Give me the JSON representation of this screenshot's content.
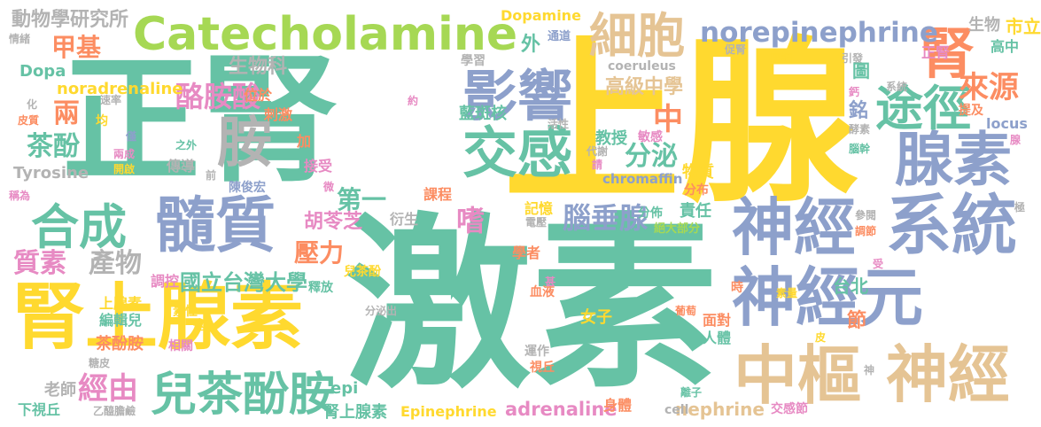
{
  "palette": {
    "teal": "#66c2a5",
    "yellow": "#ffd92f",
    "periwinkle": "#8da0cb",
    "tan": "#e5c494",
    "orange": "#fc8d62",
    "green": "#a6d854",
    "pink": "#e78ac3",
    "grey": "#b3b3b3"
  },
  "words": [
    {
      "id": "w1",
      "text": "激素",
      "color": "teal"
    },
    {
      "id": "w2",
      "text": "上腺",
      "color": "yellow"
    },
    {
      "id": "w3",
      "text": "正腎",
      "color": "teal"
    },
    {
      "id": "w4",
      "text": "腎上腺素",
      "color": "yellow"
    },
    {
      "id": "w5",
      "text": "Catecholamine",
      "color": "green"
    },
    {
      "id": "w6",
      "text": "髓質",
      "color": "periwinkle"
    },
    {
      "id": "w7",
      "text": "系統",
      "color": "periwinkle"
    },
    {
      "id": "w8",
      "text": "神經元",
      "color": "periwinkle"
    },
    {
      "id": "w9",
      "text": "神經",
      "color": "tan"
    },
    {
      "id": "w10",
      "text": "中樞",
      "color": "tan"
    },
    {
      "id": "w11",
      "text": "神經",
      "color": "periwinkle"
    },
    {
      "id": "w12",
      "text": "合成",
      "color": "teal"
    },
    {
      "id": "w13",
      "text": "兒茶酚胺",
      "color": "teal"
    },
    {
      "id": "w14",
      "text": "腺素",
      "color": "periwinkle"
    },
    {
      "id": "w15",
      "text": "細胞",
      "color": "tan"
    },
    {
      "id": "w16",
      "text": "影響",
      "color": "periwinkle"
    },
    {
      "id": "w17",
      "text": "交感",
      "color": "teal"
    },
    {
      "id": "w18",
      "text": "途徑",
      "color": "teal"
    },
    {
      "id": "w19",
      "text": "腎",
      "color": "orange"
    },
    {
      "id": "w20",
      "text": "norepinephrine",
      "color": "periwinkle"
    },
    {
      "id": "w21",
      "text": "胺",
      "color": "grey"
    },
    {
      "id": "w22",
      "text": "甲基",
      "color": "orange"
    },
    {
      "id": "w23",
      "text": "動物學研究所",
      "color": "grey"
    },
    {
      "id": "w24",
      "text": "Dopamine",
      "color": "yellow"
    },
    {
      "id": "w25",
      "text": "生物",
      "color": "grey"
    },
    {
      "id": "w26",
      "text": "來源",
      "color": "orange"
    },
    {
      "id": "w27",
      "text": "酪胺酸",
      "color": "pink"
    },
    {
      "id": "w28",
      "text": "高級中學",
      "color": "tan"
    },
    {
      "id": "w29",
      "text": "中",
      "color": "orange"
    },
    {
      "id": "w30",
      "text": "分泌",
      "color": "teal"
    },
    {
      "id": "w31",
      "text": "腦垂腺",
      "color": "periwinkle"
    },
    {
      "id": "w32",
      "text": "質素",
      "color": "pink"
    },
    {
      "id": "w33",
      "text": "產物",
      "color": "grey"
    },
    {
      "id": "w34",
      "text": "國立台灣大學",
      "color": "teal"
    },
    {
      "id": "w35",
      "text": "茶酚",
      "color": "teal"
    },
    {
      "id": "w36",
      "text": "兩",
      "color": "orange"
    },
    {
      "id": "w37",
      "text": "經由",
      "color": "pink"
    },
    {
      "id": "w38",
      "text": "壓力",
      "color": "orange"
    },
    {
      "id": "w39",
      "text": "第一",
      "color": "teal"
    },
    {
      "id": "w40",
      "text": "嗜",
      "color": "pink"
    },
    {
      "id": "w41",
      "text": "noradrenaline",
      "color": "yellow"
    },
    {
      "id": "w42",
      "text": "Dopa",
      "color": "teal"
    },
    {
      "id": "w43",
      "text": "生物科",
      "color": "grey"
    },
    {
      "id": "w44",
      "text": "Tyrosine",
      "color": "grey"
    },
    {
      "id": "w45",
      "text": "胡苓芝",
      "color": "pink"
    },
    {
      "id": "w46",
      "text": "Epinephrine",
      "color": "yellow"
    },
    {
      "id": "w47",
      "text": "adrenaline",
      "color": "pink"
    },
    {
      "id": "w48",
      "text": "nephrine",
      "color": "tan"
    },
    {
      "id": "w49",
      "text": "coeruleus",
      "color": "grey"
    },
    {
      "id": "w50",
      "text": "chromaffin",
      "color": "periwinkle"
    },
    {
      "id": "w51",
      "text": "locus",
      "color": "periwinkle"
    },
    {
      "id": "w52",
      "text": "epi",
      "color": "teal"
    },
    {
      "id": "w53",
      "text": "cell",
      "color": "grey"
    },
    {
      "id": "w54",
      "text": "台北",
      "color": "teal"
    },
    {
      "id": "w55",
      "text": "市立",
      "color": "yellow"
    },
    {
      "id": "w56",
      "text": "高中",
      "color": "teal"
    },
    {
      "id": "w57",
      "text": "正腎",
      "color": "pink"
    },
    {
      "id": "w58",
      "text": "腎上腺素",
      "color": "teal"
    },
    {
      "id": "w59",
      "text": "下視丘",
      "color": "teal"
    },
    {
      "id": "w60",
      "text": "老師",
      "color": "grey"
    },
    {
      "id": "w61",
      "text": "茶酚胺",
      "color": "orange"
    },
    {
      "id": "w62",
      "text": "上腺素",
      "color": "yellow"
    },
    {
      "id": "w63",
      "text": "編輯兒",
      "color": "teal"
    },
    {
      "id": "w64",
      "text": "調控",
      "color": "pink"
    },
    {
      "id": "w65",
      "text": "藍斑核",
      "color": "teal"
    },
    {
      "id": "w66",
      "text": "教授",
      "color": "teal"
    },
    {
      "id": "w67",
      "text": "敏感",
      "color": "pink"
    },
    {
      "id": "w68",
      "text": "課程",
      "color": "orange"
    },
    {
      "id": "w69",
      "text": "記憶",
      "color": "yellow"
    },
    {
      "id": "w70",
      "text": "衍生",
      "color": "grey"
    },
    {
      "id": "w71",
      "text": "分佈",
      "color": "teal"
    },
    {
      "id": "w72",
      "text": "責任",
      "color": "teal"
    },
    {
      "id": "w73",
      "text": "絕大部分",
      "color": "green"
    },
    {
      "id": "w74",
      "text": "物質",
      "color": "yellow"
    },
    {
      "id": "w75",
      "text": "分布",
      "color": "orange"
    },
    {
      "id": "w76",
      "text": "學者",
      "color": "orange"
    },
    {
      "id": "w77",
      "text": "女子",
      "color": "yellow"
    },
    {
      "id": "w78",
      "text": "節",
      "color": "orange"
    },
    {
      "id": "w79",
      "text": "面對",
      "color": "orange"
    },
    {
      "id": "w80",
      "text": "人體",
      "color": "teal"
    },
    {
      "id": "w81",
      "text": "身體",
      "color": "orange"
    },
    {
      "id": "w82",
      "text": "交感節",
      "color": "pink"
    },
    {
      "id": "w83",
      "text": "運作",
      "color": "grey"
    },
    {
      "id": "w84",
      "text": "視丘",
      "color": "orange"
    },
    {
      "id": "w85",
      "text": "血液",
      "color": "orange"
    },
    {
      "id": "w86",
      "text": "陳俊宏",
      "color": "periwinkle"
    },
    {
      "id": "w87",
      "text": "傳導",
      "color": "grey"
    },
    {
      "id": "w88",
      "text": "接受",
      "color": "pink"
    },
    {
      "id": "w89",
      "text": "刺激",
      "color": "orange"
    },
    {
      "id": "w90",
      "text": "位於",
      "color": "orange"
    },
    {
      "id": "w91",
      "text": "學習",
      "color": "grey"
    },
    {
      "id": "w92",
      "text": "通道",
      "color": "periwinkle"
    },
    {
      "id": "w93",
      "text": "閱讀",
      "color": "yellow"
    },
    {
      "id": "w94",
      "text": "促腎",
      "color": "grey"
    },
    {
      "id": "w95",
      "text": "引發",
      "color": "grey"
    },
    {
      "id": "w96",
      "text": "系統",
      "color": "grey"
    },
    {
      "id": "w97",
      "text": "提及",
      "color": "orange"
    },
    {
      "id": "w98",
      "text": "酵素",
      "color": "grey"
    },
    {
      "id": "w99",
      "text": "腦幹",
      "color": "teal"
    },
    {
      "id": "w100",
      "text": "參閱",
      "color": "grey"
    },
    {
      "id": "w101",
      "text": "調節",
      "color": "orange"
    },
    {
      "id": "w102",
      "text": "情緒",
      "color": "grey"
    },
    {
      "id": "w103",
      "text": "皮質",
      "color": "orange"
    },
    {
      "id": "w104",
      "text": "稱為",
      "color": "pink"
    },
    {
      "id": "w105",
      "text": "兩成",
      "color": "pink"
    },
    {
      "id": "w106",
      "text": "開啟",
      "color": "yellow"
    },
    {
      "id": "w107",
      "text": "素性",
      "color": "yellow"
    },
    {
      "id": "w108",
      "text": "相關",
      "color": "pink"
    },
    {
      "id": "w109",
      "text": "糖皮",
      "color": "grey"
    },
    {
      "id": "w110",
      "text": "乙醯膽鹼",
      "color": "grey"
    },
    {
      "id": "w111",
      "text": "之外",
      "color": "teal"
    },
    {
      "id": "w112",
      "text": "均",
      "color": "yellow"
    },
    {
      "id": "w113",
      "text": "僅",
      "color": "periwinkle"
    },
    {
      "id": "w114",
      "text": "速率",
      "color": "grey"
    },
    {
      "id": "w115",
      "text": "化",
      "color": "grey"
    },
    {
      "id": "w116",
      "text": "活性",
      "color": "grey"
    },
    {
      "id": "w117",
      "text": "約",
      "color": "pink"
    },
    {
      "id": "w118",
      "text": "代謝",
      "color": "grey"
    },
    {
      "id": "w119",
      "text": "請",
      "color": "pink"
    },
    {
      "id": "w120",
      "text": "電壓",
      "color": "grey"
    },
    {
      "id": "w121",
      "text": "分泌出",
      "color": "grey"
    },
    {
      "id": "w122",
      "text": "兒茶酚",
      "color": "yellow"
    },
    {
      "id": "w123",
      "text": "釋放",
      "color": "teal"
    },
    {
      "id": "w124",
      "text": "甚",
      "color": "pink"
    },
    {
      "id": "w125",
      "text": "時",
      "color": "orange"
    },
    {
      "id": "w126",
      "text": "葡萄",
      "color": "orange"
    },
    {
      "id": "w127",
      "text": "素量",
      "color": "yellow"
    },
    {
      "id": "w128",
      "text": "皮",
      "color": "yellow"
    },
    {
      "id": "w129",
      "text": "受",
      "color": "pink"
    },
    {
      "id": "w130",
      "text": "神",
      "color": "grey"
    },
    {
      "id": "w131",
      "text": "離子",
      "color": "teal"
    },
    {
      "id": "w132",
      "text": "極",
      "color": "grey"
    },
    {
      "id": "w133",
      "text": "腺",
      "color": "pink"
    },
    {
      "id": "w134",
      "text": "鈣",
      "color": "pink"
    },
    {
      "id": "w135",
      "text": "圖",
      "color": "teal"
    },
    {
      "id": "w136",
      "text": "銘",
      "color": "periwinkle"
    },
    {
      "id": "w137",
      "text": "外",
      "color": "teal"
    },
    {
      "id": "w138",
      "text": "前",
      "color": "grey"
    },
    {
      "id": "w139",
      "text": "微",
      "color": "pink"
    },
    {
      "id": "w140",
      "text": "遂",
      "color": "yellow"
    },
    {
      "id": "w141",
      "text": "加",
      "color": "orange"
    },
    {
      "id": "w142",
      "text": "生物",
      "color": "grey"
    }
  ]
}
